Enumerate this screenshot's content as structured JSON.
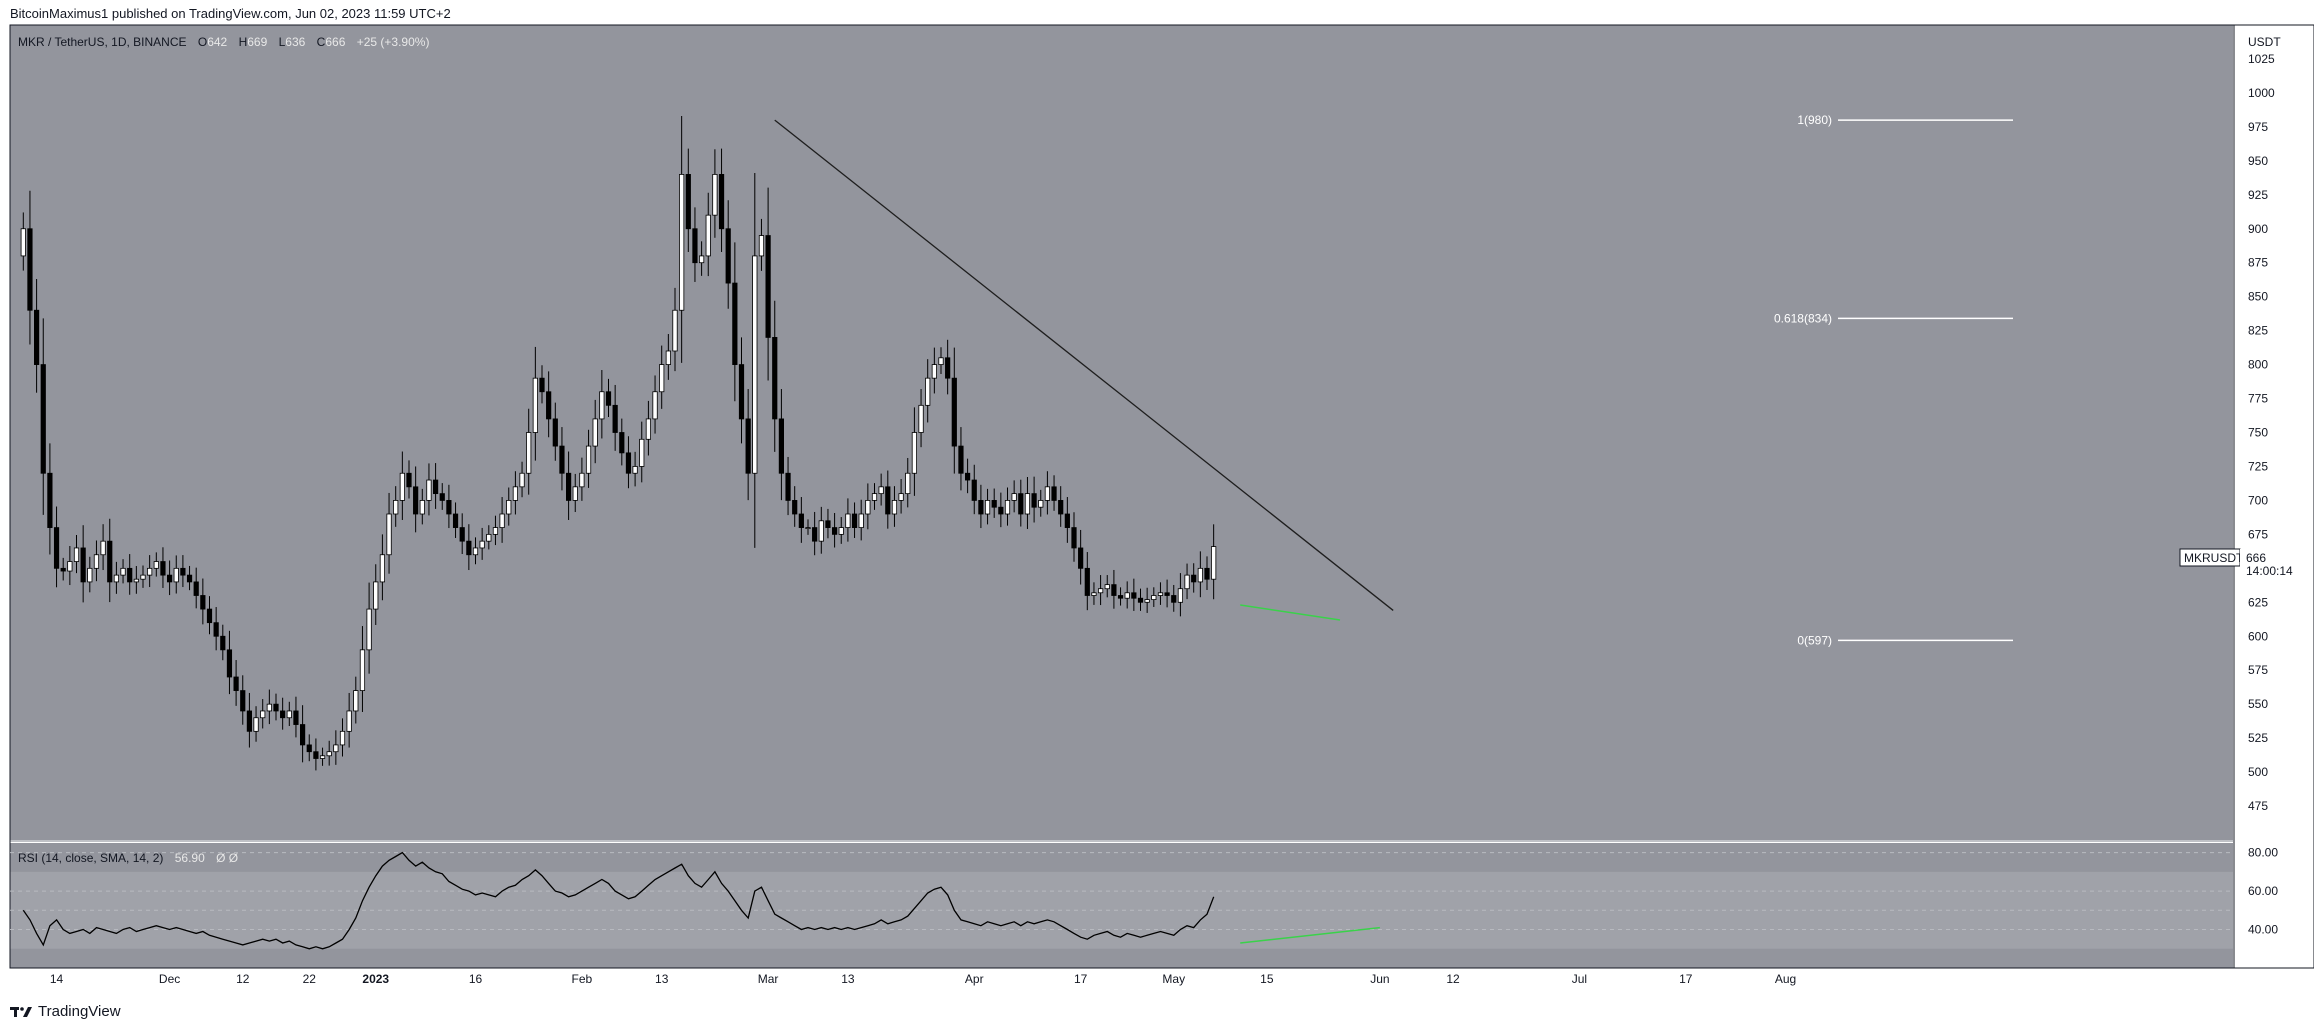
{
  "header": {
    "publisher": "BitcoinMaximus1 published on TradingView.com, Jun 02, 2023 11:59 UTC+2"
  },
  "footer": {
    "brand": "TradingView"
  },
  "symbol_line": {
    "title": "MKR / TetherUS, 1D, BINANCE",
    "o_label": "O",
    "o_value": "642",
    "h_label": "H",
    "h_value": "669",
    "l_label": "L",
    "l_value": "636",
    "c_label": "C",
    "c_value": "666",
    "change": "+25 (+3.90%)"
  },
  "price_tag": {
    "symbol": "MKRUSDT",
    "price": "666",
    "countdown": "14:00:14"
  },
  "rsi_label": {
    "title": "RSI (14, close, SMA, 14, 2)",
    "value": "56.90",
    "extra": "Ø Ø"
  },
  "colors": {
    "pane_bg": "#93959d",
    "rsi_band": "#9c9ea5",
    "candle_up": "#ffffff",
    "candle_down": "#000000",
    "support_line": "#3ad24a",
    "trend_line": "#1e1e1e"
  },
  "chart_data": {
    "type": "candlestick",
    "title": "MKR / TetherUS, 1D, BINANCE",
    "y_axis": {
      "unit": "USDT",
      "range": [
        450,
        1050
      ],
      "ticks": [
        475,
        500,
        525,
        550,
        575,
        600,
        625,
        650,
        675,
        700,
        725,
        750,
        775,
        800,
        825,
        850,
        875,
        900,
        925,
        950,
        975,
        1000,
        1025
      ]
    },
    "x_axis": {
      "ticks": [
        {
          "label": "14",
          "date": "2022-11-14"
        },
        {
          "label": "Dec",
          "date": "2022-12-01"
        },
        {
          "label": "12",
          "date": "2022-12-12"
        },
        {
          "label": "22",
          "date": "2022-12-22"
        },
        {
          "label": "2023",
          "date": "2023-01-01"
        },
        {
          "label": "16",
          "date": "2023-01-16"
        },
        {
          "label": "Feb",
          "date": "2023-02-01"
        },
        {
          "label": "13",
          "date": "2023-02-13"
        },
        {
          "label": "Mar",
          "date": "2023-03-01"
        },
        {
          "label": "13",
          "date": "2023-03-13"
        },
        {
          "label": "Apr",
          "date": "2023-04-01"
        },
        {
          "label": "17",
          "date": "2023-04-17"
        },
        {
          "label": "May",
          "date": "2023-05-01"
        },
        {
          "label": "15",
          "date": "2023-05-15"
        },
        {
          "label": "Jun",
          "date": "2023-06-01"
        },
        {
          "label": "12",
          "date": "2023-06-12"
        },
        {
          "label": "Jul",
          "date": "2023-07-01"
        },
        {
          "label": "17",
          "date": "2023-07-17"
        },
        {
          "label": "Aug",
          "date": "2023-08-01"
        }
      ]
    },
    "close_series": {
      "start": "2022-11-09",
      "closes": [
        900,
        840,
        800,
        720,
        680,
        650,
        648,
        655,
        665,
        640,
        650,
        660,
        670,
        640,
        645,
        650,
        640,
        642,
        645,
        650,
        655,
        645,
        640,
        650,
        645,
        640,
        630,
        620,
        610,
        600,
        590,
        570,
        560,
        545,
        530,
        540,
        545,
        550,
        545,
        540,
        545,
        535,
        520,
        515,
        510,
        512,
        515,
        520,
        530,
        545,
        560,
        590,
        620,
        640,
        660,
        690,
        700,
        720,
        710,
        690,
        700,
        715,
        705,
        700,
        690,
        680,
        670,
        660,
        665,
        670,
        675,
        680,
        690,
        700,
        710,
        720,
        750,
        790,
        780,
        760,
        740,
        720,
        700,
        710,
        720,
        740,
        760,
        780,
        770,
        750,
        735,
        720,
        725,
        745,
        760,
        780,
        800,
        810,
        840,
        940,
        900,
        875,
        880,
        910,
        940,
        900,
        860,
        800,
        760,
        720,
        880,
        895,
        820,
        760,
        720,
        700,
        690,
        680,
        680,
        670,
        685,
        680,
        675,
        680,
        690,
        680,
        690,
        700,
        705,
        710,
        690,
        700,
        705,
        720,
        750,
        770,
        790,
        800,
        805,
        790,
        740,
        720,
        715,
        700,
        690,
        700,
        695,
        690,
        700,
        705,
        690,
        705,
        695,
        700,
        710,
        700,
        690,
        680,
        665,
        650,
        630,
        632,
        635,
        638,
        630,
        628,
        632,
        628,
        625,
        627,
        630,
        632,
        630,
        625,
        635,
        645,
        640,
        650,
        642,
        666
      ]
    },
    "annotations": [
      {
        "type": "fib_level",
        "label": "1(980)",
        "value": 980
      },
      {
        "type": "fib_level",
        "label": "0.618(834)",
        "value": 834
      },
      {
        "type": "fib_level",
        "label": "0(597)",
        "value": 597
      },
      {
        "type": "trendline",
        "from": {
          "date": "2023-03-02",
          "price": 980
        },
        "to": {
          "date": "2023-06-03",
          "price": 619
        }
      },
      {
        "type": "support_line",
        "from": {
          "date": "2023-05-11",
          "price": 623
        },
        "to": {
          "date": "2023-05-26",
          "price": 612
        }
      }
    ],
    "rsi": {
      "y_ticks": [
        40,
        60,
        80
      ],
      "band": [
        30,
        70
      ],
      "midline": 50,
      "start": "2022-11-09",
      "values": [
        50,
        45,
        38,
        32,
        42,
        45,
        40,
        38,
        39,
        40,
        38,
        41,
        40,
        39,
        38,
        40,
        41,
        39,
        40,
        41,
        42,
        41,
        40,
        41,
        40,
        39,
        38,
        39,
        37,
        36,
        35,
        34,
        33,
        32,
        33,
        34,
        35,
        34,
        35,
        33,
        34,
        32,
        31,
        30,
        31,
        30,
        31,
        33,
        35,
        40,
        46,
        55,
        62,
        68,
        73,
        76,
        78,
        80,
        76,
        73,
        75,
        72,
        70,
        69,
        65,
        63,
        61,
        60,
        58,
        59,
        58,
        57,
        60,
        62,
        63,
        66,
        68,
        71,
        68,
        64,
        60,
        59,
        57,
        58,
        60,
        62,
        64,
        66,
        64,
        60,
        58,
        56,
        57,
        60,
        63,
        66,
        68,
        70,
        72,
        74,
        68,
        64,
        62,
        66,
        70,
        64,
        60,
        55,
        50,
        46,
        60,
        62,
        55,
        48,
        46,
        44,
        42,
        40,
        41,
        40,
        41,
        40,
        41,
        40,
        41,
        40,
        41,
        42,
        43,
        45,
        43,
        44,
        45,
        47,
        51,
        55,
        59,
        61,
        62,
        58,
        50,
        45,
        44,
        43,
        42,
        44,
        43,
        42,
        43,
        44,
        42,
        44,
        43,
        44,
        45,
        44,
        42,
        40,
        38,
        36,
        35,
        37,
        38,
        39,
        37,
        36,
        38,
        37,
        36,
        37,
        38,
        39,
        38,
        37,
        40,
        42,
        41,
        45,
        48,
        57
      ]
    },
    "rsi_support_line": {
      "from": {
        "date": "2023-05-11",
        "value": 33
      },
      "to": {
        "date": "2023-06-01",
        "value": 41
      }
    }
  }
}
